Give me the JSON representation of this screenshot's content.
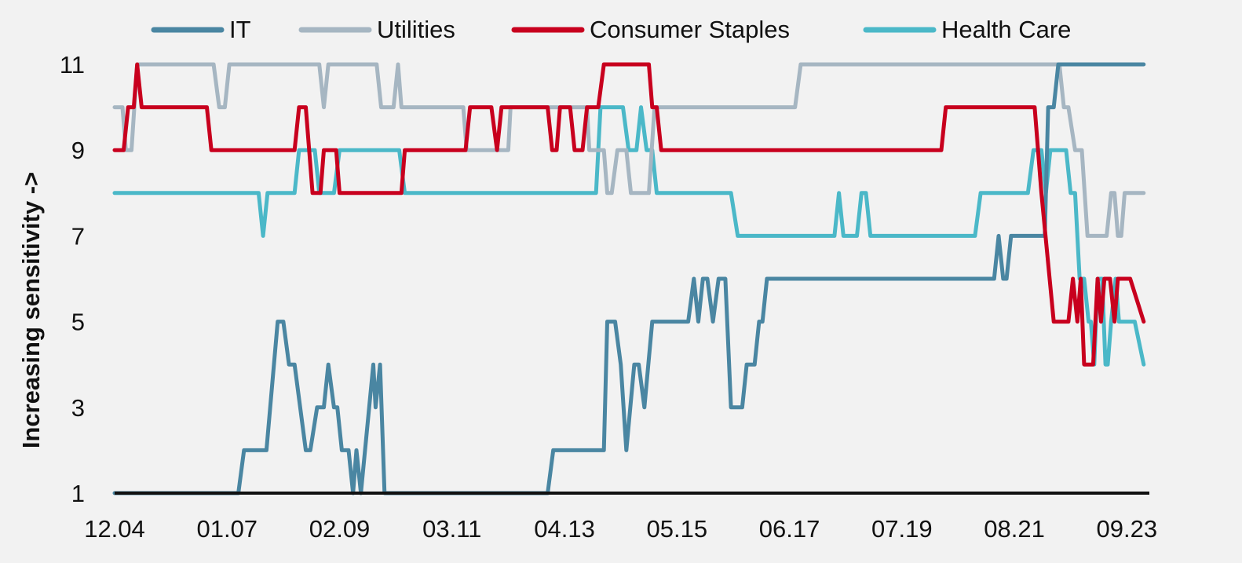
{
  "chart_data": {
    "type": "line",
    "title": "",
    "xlabel": "",
    "ylabel": "Increasing sensitivity ->",
    "xlim": [
      0,
      92
    ],
    "ylim": [
      1,
      11
    ],
    "x_ticks": [
      {
        "x": 0,
        "label": "12.04"
      },
      {
        "x": 10,
        "label": "01.07"
      },
      {
        "x": 20,
        "label": "02.09"
      },
      {
        "x": 30,
        "label": "03.11"
      },
      {
        "x": 40,
        "label": "04.13"
      },
      {
        "x": 50,
        "label": "05.15"
      },
      {
        "x": 60,
        "label": "06.17"
      },
      {
        "x": 70,
        "label": "07.19"
      },
      {
        "x": 80,
        "label": "08.21"
      },
      {
        "x": 90,
        "label": "09.23"
      }
    ],
    "y_ticks": [
      1,
      3,
      5,
      7,
      9,
      11
    ],
    "grid": false,
    "legend_position": "top",
    "baseline": {
      "y": 1,
      "color": "#111111"
    },
    "series": [
      {
        "name": "IT",
        "color": "#4a86a2",
        "points": [
          [
            0,
            1
          ],
          [
            11,
            1
          ],
          [
            11.5,
            2
          ],
          [
            13.5,
            2
          ],
          [
            14.5,
            5
          ],
          [
            15,
            5
          ],
          [
            15.5,
            4
          ],
          [
            16,
            4
          ],
          [
            17,
            2
          ],
          [
            17.4,
            2
          ],
          [
            18,
            3
          ],
          [
            18.6,
            3
          ],
          [
            19,
            4
          ],
          [
            19.5,
            3
          ],
          [
            19.8,
            3
          ],
          [
            20.2,
            2
          ],
          [
            20.8,
            2
          ],
          [
            21.2,
            1
          ],
          [
            21.5,
            2
          ],
          [
            21.9,
            1
          ],
          [
            23,
            4
          ],
          [
            23.2,
            3
          ],
          [
            23.6,
            4
          ],
          [
            24,
            1
          ],
          [
            38.5,
            1
          ],
          [
            39,
            2
          ],
          [
            43.5,
            2
          ],
          [
            43.8,
            5
          ],
          [
            44.5,
            5
          ],
          [
            45,
            4
          ],
          [
            45.5,
            2
          ],
          [
            46.2,
            4
          ],
          [
            46.6,
            4
          ],
          [
            47.1,
            3
          ],
          [
            47.8,
            5
          ],
          [
            51,
            5
          ],
          [
            51.5,
            6
          ],
          [
            51.9,
            5
          ],
          [
            52.3,
            6
          ],
          [
            52.7,
            6
          ],
          [
            53.2,
            5
          ],
          [
            53.7,
            6
          ],
          [
            54.3,
            6
          ],
          [
            54.8,
            3
          ],
          [
            55.8,
            3
          ],
          [
            56.2,
            4
          ],
          [
            56.9,
            4
          ],
          [
            57.3,
            5
          ],
          [
            57.6,
            5
          ],
          [
            58,
            6
          ],
          [
            78.2,
            6
          ],
          [
            78.6,
            7
          ],
          [
            79,
            6
          ],
          [
            79.3,
            6
          ],
          [
            79.7,
            7
          ],
          [
            82.7,
            7
          ],
          [
            83,
            10
          ],
          [
            83.5,
            10
          ],
          [
            83.9,
            11
          ],
          [
            91.5,
            11
          ]
        ]
      },
      {
        "name": "Utilities",
        "color": "#a6b6c2",
        "points": [
          [
            0,
            10
          ],
          [
            0.7,
            10
          ],
          [
            1,
            9
          ],
          [
            1.5,
            9
          ],
          [
            2,
            11
          ],
          [
            8.8,
            11
          ],
          [
            9.3,
            10
          ],
          [
            9.8,
            10
          ],
          [
            10.2,
            11
          ],
          [
            18.2,
            11
          ],
          [
            18.6,
            10
          ],
          [
            19,
            11
          ],
          [
            23.3,
            11
          ],
          [
            23.7,
            10
          ],
          [
            24.8,
            10
          ],
          [
            25.2,
            11
          ],
          [
            25.5,
            10
          ],
          [
            31,
            10
          ],
          [
            31.3,
            9
          ],
          [
            35,
            9
          ],
          [
            35.2,
            10
          ],
          [
            42,
            10
          ],
          [
            42.2,
            9
          ],
          [
            43.5,
            9
          ],
          [
            43.8,
            8
          ],
          [
            44.2,
            8
          ],
          [
            44.7,
            9
          ],
          [
            45.5,
            9
          ],
          [
            45.9,
            8
          ],
          [
            47.5,
            8
          ],
          [
            48,
            10
          ],
          [
            60.5,
            10
          ],
          [
            61,
            11
          ],
          [
            84,
            11
          ],
          [
            84.4,
            10
          ],
          [
            84.8,
            10
          ],
          [
            85.4,
            9
          ],
          [
            86,
            9
          ],
          [
            86.5,
            7
          ],
          [
            88.2,
            7
          ],
          [
            88.6,
            8
          ],
          [
            88.9,
            8
          ],
          [
            89.2,
            7
          ],
          [
            89.5,
            7
          ],
          [
            89.8,
            8
          ],
          [
            91.5,
            8
          ]
        ]
      },
      {
        "name": "Consumer Staples",
        "color": "#c8001e",
        "points": [
          [
            0,
            9
          ],
          [
            0.8,
            9
          ],
          [
            1.2,
            10
          ],
          [
            1.7,
            10
          ],
          [
            2,
            11
          ],
          [
            2.4,
            10
          ],
          [
            8.2,
            10
          ],
          [
            8.6,
            9
          ],
          [
            16,
            9
          ],
          [
            16.4,
            10
          ],
          [
            17,
            10
          ],
          [
            17.6,
            8
          ],
          [
            18.3,
            8
          ],
          [
            18.6,
            9
          ],
          [
            19.7,
            9
          ],
          [
            20,
            8
          ],
          [
            25.5,
            8
          ],
          [
            25.8,
            9
          ],
          [
            31.2,
            9
          ],
          [
            31.6,
            10
          ],
          [
            33.5,
            10
          ],
          [
            34,
            9
          ],
          [
            34.4,
            10
          ],
          [
            38.5,
            10
          ],
          [
            38.9,
            9
          ],
          [
            39.3,
            9
          ],
          [
            39.6,
            10
          ],
          [
            40.5,
            10
          ],
          [
            40.9,
            9
          ],
          [
            41.6,
            9
          ],
          [
            42,
            10
          ],
          [
            43,
            10
          ],
          [
            43.5,
            11
          ],
          [
            47.5,
            11
          ],
          [
            47.8,
            10
          ],
          [
            48.2,
            10
          ],
          [
            48.6,
            9
          ],
          [
            73.5,
            9
          ],
          [
            73.9,
            10
          ],
          [
            81.8,
            10
          ],
          [
            82.4,
            8
          ],
          [
            83.5,
            5
          ],
          [
            84.8,
            5
          ],
          [
            85.2,
            6
          ],
          [
            85.6,
            5
          ],
          [
            85.9,
            6
          ],
          [
            86.2,
            4
          ],
          [
            87,
            4
          ],
          [
            87.4,
            6
          ],
          [
            87.7,
            5
          ],
          [
            88,
            6
          ],
          [
            88.5,
            6
          ],
          [
            88.9,
            5
          ],
          [
            89.2,
            6
          ],
          [
            90.3,
            6
          ],
          [
            91.5,
            5
          ]
        ]
      },
      {
        "name": "Health Care",
        "color": "#4bb8c8",
        "points": [
          [
            0,
            8
          ],
          [
            12.8,
            8
          ],
          [
            13.2,
            7
          ],
          [
            13.6,
            8
          ],
          [
            16,
            8
          ],
          [
            16.4,
            9
          ],
          [
            17.8,
            9
          ],
          [
            18.2,
            8
          ],
          [
            19.5,
            8
          ],
          [
            20,
            9
          ],
          [
            25.3,
            9
          ],
          [
            25.8,
            8
          ],
          [
            42.8,
            8
          ],
          [
            43.2,
            10
          ],
          [
            45.2,
            10
          ],
          [
            45.7,
            9
          ],
          [
            46.4,
            9
          ],
          [
            46.8,
            10
          ],
          [
            47.3,
            9
          ],
          [
            47.8,
            9
          ],
          [
            48.2,
            8
          ],
          [
            54.8,
            8
          ],
          [
            55.4,
            7
          ],
          [
            64,
            7
          ],
          [
            64.4,
            8
          ],
          [
            64.8,
            7
          ],
          [
            66,
            7
          ],
          [
            66.4,
            8
          ],
          [
            66.8,
            8
          ],
          [
            67.2,
            7
          ],
          [
            76.5,
            7
          ],
          [
            77,
            8
          ],
          [
            81.2,
            8
          ],
          [
            81.7,
            9
          ],
          [
            82.4,
            9
          ],
          [
            82.8,
            8
          ],
          [
            83.2,
            9
          ],
          [
            84.6,
            9
          ],
          [
            85,
            8
          ],
          [
            85.4,
            8
          ],
          [
            85.8,
            6
          ],
          [
            86.2,
            6
          ],
          [
            86.6,
            5
          ],
          [
            86.8,
            5
          ],
          [
            87.1,
            4
          ],
          [
            87.4,
            6
          ],
          [
            87.8,
            6
          ],
          [
            88.1,
            4
          ],
          [
            88.3,
            4
          ],
          [
            88.6,
            5
          ],
          [
            89,
            6
          ],
          [
            89.3,
            5
          ],
          [
            90.7,
            5
          ],
          [
            91.5,
            4
          ]
        ]
      }
    ]
  }
}
